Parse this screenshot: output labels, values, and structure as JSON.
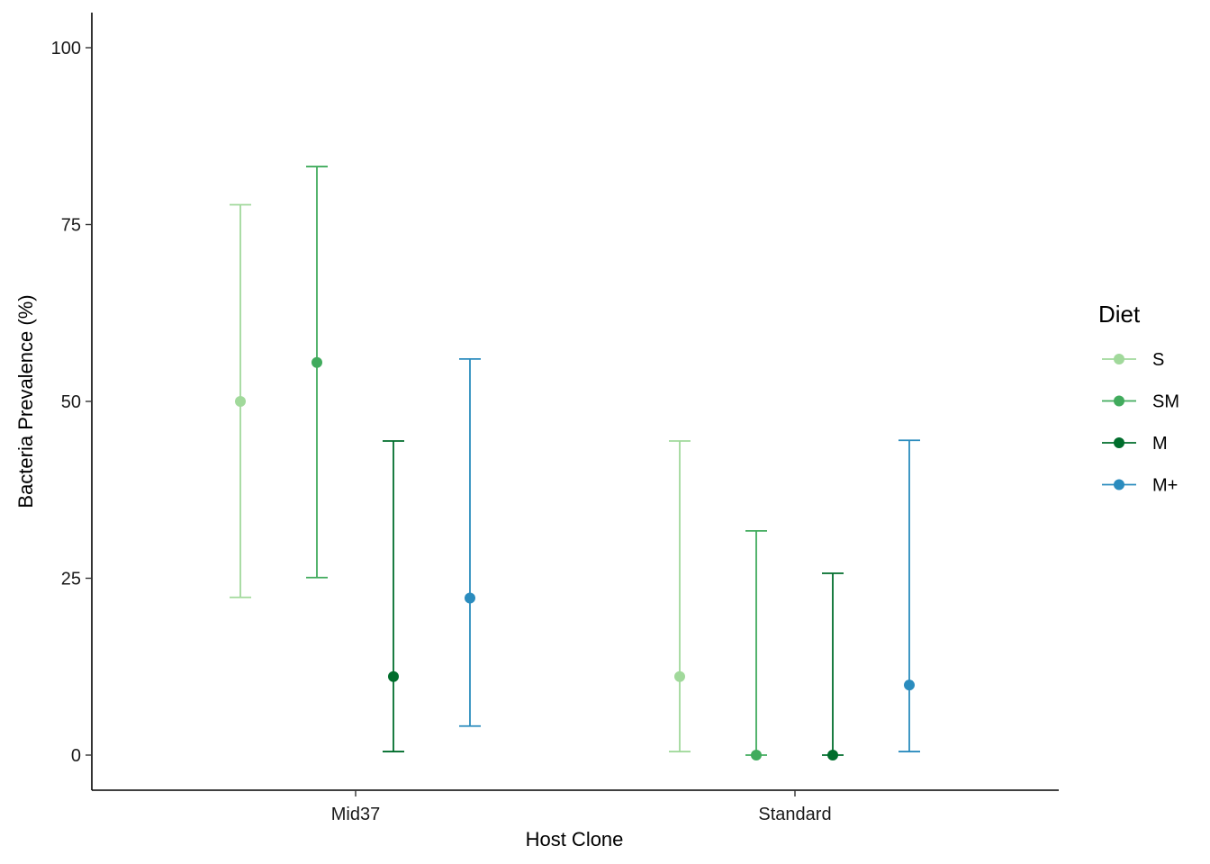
{
  "chart_data": {
    "type": "scatter",
    "subtype": "point-errorbar",
    "xlabel": "Host Clone",
    "ylabel": "Bacteria Prevalence (%)",
    "categories": [
      "Mid37",
      "Standard"
    ],
    "ylim": [
      -5,
      105
    ],
    "yticks": [
      "0",
      "25",
      "50",
      "75",
      "100"
    ],
    "grid": false,
    "legend": {
      "title": "Diet",
      "position": "right"
    },
    "series": [
      {
        "name": "S",
        "color": "#a1d99b",
        "values": [
          50.0,
          11.1
        ],
        "lower": [
          22.3,
          0.5
        ],
        "upper": [
          77.8,
          44.4
        ]
      },
      {
        "name": "SM",
        "color": "#41ab5d",
        "values": [
          55.5,
          0.0
        ],
        "lower": [
          25.1,
          0.0
        ],
        "upper": [
          83.2,
          31.7
        ]
      },
      {
        "name": "M",
        "color": "#006d2c",
        "values": [
          11.1,
          0.0
        ],
        "lower": [
          0.5,
          0.0
        ],
        "upper": [
          44.4,
          25.7
        ]
      },
      {
        "name": "M+",
        "color": "#2b8cbe",
        "values": [
          22.2,
          9.9
        ],
        "lower": [
          4.1,
          0.5
        ],
        "upper": [
          56.0,
          44.5
        ]
      }
    ]
  }
}
